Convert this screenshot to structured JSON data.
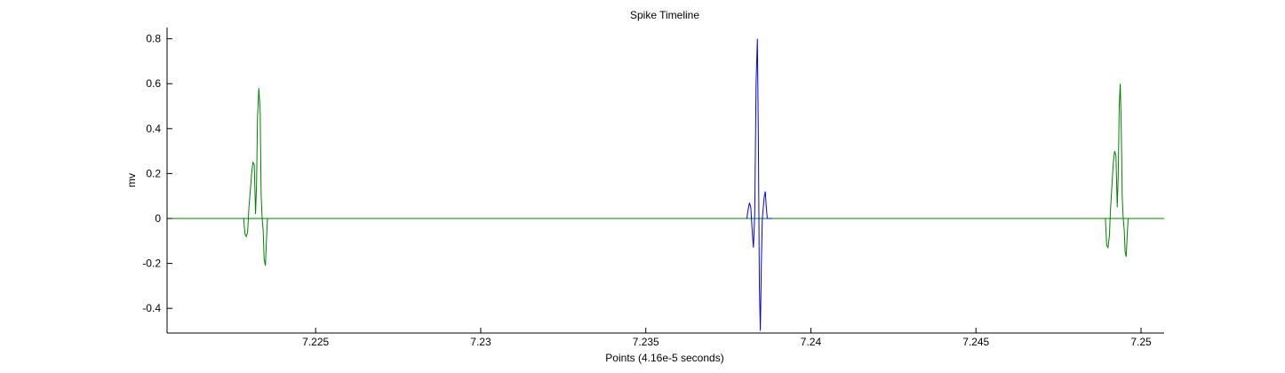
{
  "chart_data": {
    "type": "line",
    "title": "Spike Timeline",
    "xlabel": "Points (4.16e-5 seconds)",
    "ylabel": "mv",
    "xlim": [
      7.2205,
      7.2507
    ],
    "ylim": [
      -0.51,
      0.85
    ],
    "x_ticks": [
      7.225,
      7.23,
      7.235,
      7.24,
      7.245,
      7.25
    ],
    "x_tick_labels": [
      "7.225",
      "7.23",
      "7.235",
      "7.24",
      "7.245",
      "7.25"
    ],
    "y_ticks": [
      -0.4,
      -0.2,
      0,
      0.2,
      0.4,
      0.6,
      0.8
    ],
    "y_tick_labels": [
      "-0.4",
      "-0.2",
      "0",
      "0.2",
      "0.4",
      "0.6",
      "0.8"
    ],
    "grid": false,
    "series": [
      {
        "color": "#008000",
        "style": "baseline",
        "x": [
          7.2205,
          7.2507
        ],
        "y": [
          0,
          0
        ]
      },
      {
        "color": "#008000",
        "style": "spike",
        "x": [
          7.22282,
          7.22286,
          7.2229,
          7.22294,
          7.22298,
          7.22302,
          7.22306,
          7.2231,
          7.22314,
          7.22318,
          7.22321,
          7.22324,
          7.22328,
          7.22332,
          7.22335,
          7.22338,
          7.22341,
          7.22344,
          7.22348,
          7.22351,
          7.22354,
          7.22357,
          7.2236,
          7.22363,
          7.22366,
          7.22369
        ],
        "y": [
          0,
          -0.07,
          -0.08,
          -0.06,
          0.05,
          0.12,
          0.2,
          0.25,
          0.24,
          0.02,
          0.15,
          0.45,
          0.58,
          0.48,
          0.1,
          0,
          -0.05,
          -0.18,
          -0.21,
          -0.1,
          0,
          0,
          0,
          0,
          0,
          0
        ]
      },
      {
        "color": "#0000ff",
        "style": "spike",
        "x": [
          7.23806,
          7.2381,
          7.23814,
          7.23818,
          7.23822,
          7.23826,
          7.2383,
          7.23834,
          7.23838,
          7.23841,
          7.23844,
          7.23847,
          7.2385,
          7.23853,
          7.23856,
          7.23859,
          7.23862,
          7.23865,
          7.23868,
          7.23871,
          7.23874,
          7.23877,
          7.2388,
          7.23884
        ],
        "y": [
          0,
          0.04,
          0.07,
          0.05,
          -0.05,
          -0.13,
          0.02,
          0.6,
          0.8,
          0.35,
          -0.3,
          -0.5,
          -0.2,
          0,
          0.05,
          0.1,
          0.12,
          0.05,
          0,
          0,
          0,
          0,
          0,
          0
        ]
      },
      {
        "color": "#008000",
        "style": "spike",
        "x": [
          7.24892,
          7.24896,
          7.249,
          7.24904,
          7.24908,
          7.24912,
          7.24916,
          7.2492,
          7.24924,
          7.24928,
          7.24931,
          7.24934,
          7.24937,
          7.2494,
          7.24943,
          7.24946,
          7.24949,
          7.24952,
          7.24955,
          7.24958,
          7.24961,
          7.24964,
          7.24967
        ],
        "y": [
          0,
          -0.12,
          -0.13,
          -0.08,
          0.05,
          0.15,
          0.25,
          0.3,
          0.28,
          0.05,
          0.2,
          0.5,
          0.6,
          0.42,
          0.1,
          0,
          -0.05,
          -0.15,
          -0.17,
          -0.08,
          0,
          0,
          0
        ]
      }
    ]
  }
}
